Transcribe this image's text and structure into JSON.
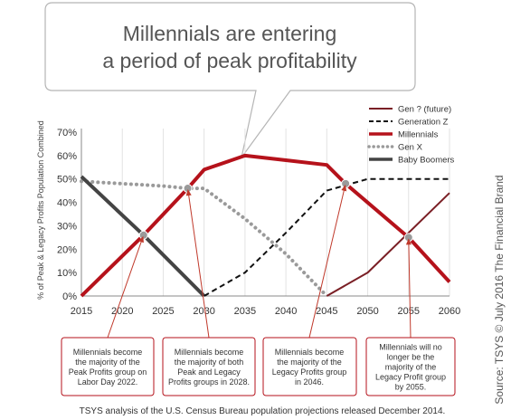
{
  "callout_title": [
    "Millennials are entering",
    "a period of peak profitability"
  ],
  "source_credit": "Source: TSYS © July 2016 The Financial Brand",
  "footer": "TSYS analysis of the U.S. Census Bureau population projections released December 2014.",
  "annotations": [
    "Millennials become|the majority of the|Peak Profits group on|Labor Day 2022.",
    "Millennials become|the majority of both|Peak and Legacy|Profits groups in 2028.",
    "Millennials become|the majority of the|Legacy Profits group|in 2046.",
    "Millennials will no|longer be the|majority of the|Legacy Profit group|by 2055."
  ],
  "colors": {
    "gen_future": "#7a1f25",
    "gen_z": "#111111",
    "millennials": "#b5121b",
    "gen_x": "#9a9a9a",
    "baby_boomers": "#444444",
    "callout_border": "#b5121b",
    "axis": "#888888"
  },
  "chart_data": {
    "type": "line",
    "ylabel": "% of Peak & Legacy Profits Population Combined",
    "xlim": [
      2015,
      2060
    ],
    "ylim": [
      0,
      70
    ],
    "x_ticks": [
      2015,
      2020,
      2025,
      2030,
      2035,
      2040,
      2045,
      2050,
      2055,
      2060
    ],
    "y_ticks": [
      "0%",
      "10%",
      "20%",
      "30%",
      "40%",
      "50%",
      "60%",
      "70%"
    ],
    "legend_position": "top-right",
    "series": [
      {
        "name": "Gen ? (future)",
        "key": "gen_future",
        "style": "solid-thin",
        "points": [
          [
            2045,
            0
          ],
          [
            2050,
            10
          ],
          [
            2060,
            44
          ]
        ]
      },
      {
        "name": "Generation Z",
        "key": "gen_z",
        "style": "dashed",
        "points": [
          [
            2030,
            0
          ],
          [
            2035,
            10
          ],
          [
            2040,
            27
          ],
          [
            2045,
            45
          ],
          [
            2050,
            50
          ],
          [
            2060,
            50
          ]
        ]
      },
      {
        "name": "Millennials",
        "key": "millennials",
        "style": "solid-thick",
        "points": [
          [
            2015,
            0
          ],
          [
            2022.6,
            26
          ],
          [
            2028,
            46
          ],
          [
            2030,
            54
          ],
          [
            2035,
            60
          ],
          [
            2040,
            58
          ],
          [
            2045,
            56
          ],
          [
            2047.3,
            48
          ],
          [
            2055,
            25
          ],
          [
            2060,
            6
          ]
        ]
      },
      {
        "name": "Gen X",
        "key": "gen_x",
        "style": "dotted",
        "points": [
          [
            2015,
            49
          ],
          [
            2025,
            47
          ],
          [
            2028,
            46
          ],
          [
            2030,
            46
          ],
          [
            2035,
            33
          ],
          [
            2040,
            18
          ],
          [
            2045,
            0
          ]
        ]
      },
      {
        "name": "Baby Boomers",
        "key": "baby_boomers",
        "style": "solid-thick",
        "points": [
          [
            2015,
            51
          ],
          [
            2022.6,
            26
          ],
          [
            2030,
            0
          ]
        ]
      }
    ],
    "crossings": [
      [
        2022.6,
        26
      ],
      [
        2028,
        46
      ],
      [
        2047.3,
        48
      ],
      [
        2055,
        25
      ]
    ]
  }
}
